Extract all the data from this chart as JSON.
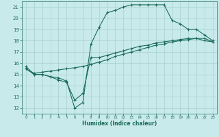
{
  "xlabel": "Humidex (Indice chaleur)",
  "bg_color": "#c8eaea",
  "grid_color": "#a8d0d0",
  "line_color": "#1a6b5a",
  "xlim": [
    -0.5,
    23.5
  ],
  "ylim": [
    11.5,
    21.5
  ],
  "xticks": [
    0,
    1,
    2,
    3,
    4,
    5,
    6,
    7,
    8,
    9,
    10,
    11,
    12,
    13,
    14,
    15,
    16,
    17,
    18,
    19,
    20,
    21,
    22,
    23
  ],
  "yticks": [
    12,
    13,
    14,
    15,
    16,
    17,
    18,
    19,
    20,
    21
  ],
  "line1_x": [
    0,
    1,
    2,
    3,
    4,
    5,
    6,
    7,
    8,
    9,
    10,
    11,
    12,
    13,
    14,
    15,
    16,
    17,
    18,
    19,
    20,
    21,
    22,
    23
  ],
  "line1_y": [
    15.7,
    15.0,
    15.0,
    14.8,
    14.7,
    14.4,
    12.0,
    12.5,
    17.7,
    19.2,
    20.5,
    20.7,
    21.0,
    21.2,
    21.2,
    21.2,
    21.2,
    21.2,
    19.8,
    19.5,
    19.0,
    19.0,
    18.5,
    18.0
  ],
  "line2_x": [
    0,
    1,
    2,
    3,
    4,
    5,
    6,
    7,
    8,
    9,
    10,
    11,
    12,
    13,
    14,
    15,
    16,
    17,
    18,
    19,
    20,
    21,
    22,
    23
  ],
  "line2_y": [
    15.5,
    15.0,
    15.0,
    14.8,
    14.5,
    14.3,
    12.7,
    13.3,
    16.5,
    16.5,
    16.7,
    16.9,
    17.1,
    17.3,
    17.5,
    17.6,
    17.8,
    17.9,
    18.0,
    18.1,
    18.2,
    18.2,
    18.0,
    17.9
  ],
  "line3_x": [
    0,
    1,
    2,
    3,
    4,
    5,
    6,
    7,
    8,
    9,
    10,
    11,
    12,
    13,
    14,
    15,
    16,
    17,
    18,
    19,
    20,
    21,
    22,
    23
  ],
  "line3_y": [
    15.5,
    15.1,
    15.2,
    15.3,
    15.4,
    15.5,
    15.6,
    15.7,
    15.9,
    16.1,
    16.3,
    16.6,
    16.8,
    17.0,
    17.2,
    17.4,
    17.6,
    17.7,
    17.9,
    18.0,
    18.1,
    18.2,
    18.2,
    17.9
  ]
}
